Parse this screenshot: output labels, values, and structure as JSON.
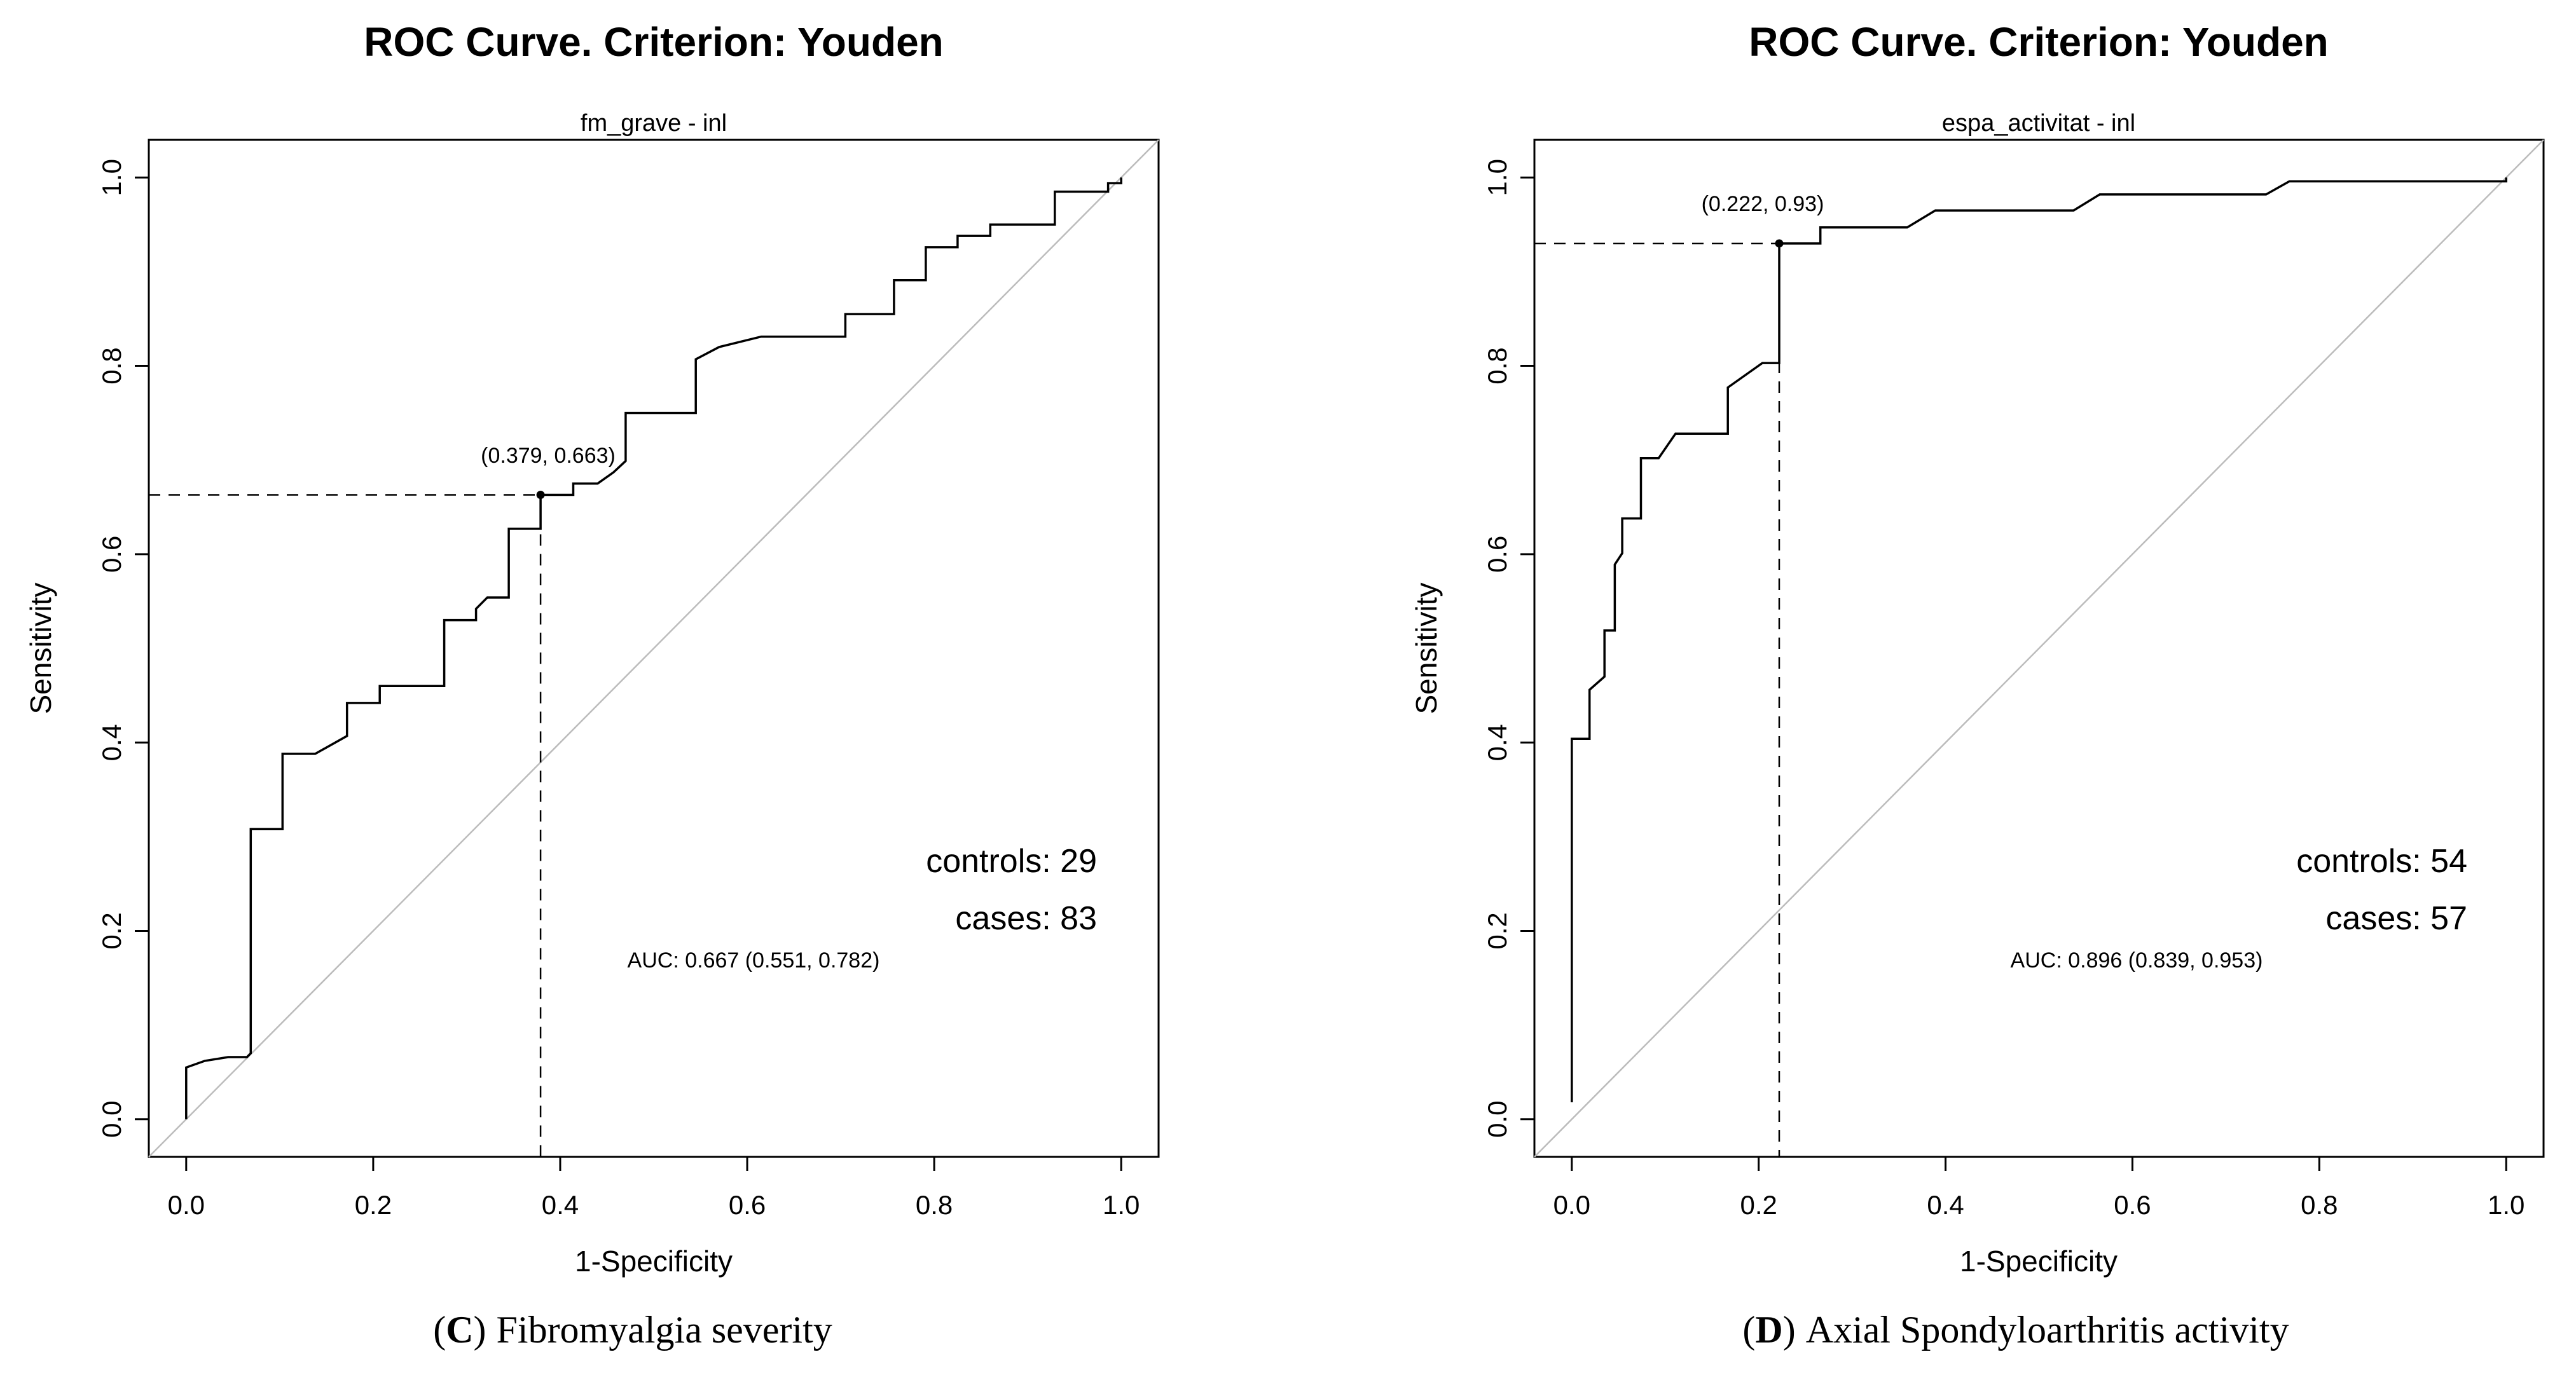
{
  "figure": {
    "background": "#ffffff"
  },
  "colors": {
    "curve": "#000000",
    "diagonal": "#bcbcbc",
    "dashed": "#000000",
    "text": "#000000",
    "box": "#000000"
  },
  "chart_data": [
    {
      "type": "line",
      "panel_letter": "C",
      "title": "ROC Curve. Criterion: Youden",
      "subtitle": "fm_grave - inl",
      "xlabel": "1-Specificity",
      "ylabel": "Sensitivity",
      "xlim": [
        0,
        1
      ],
      "ylim": [
        0,
        1
      ],
      "grid": false,
      "diagonal_reference": true,
      "legend_position": "none",
      "tick_values": [
        0,
        0.2,
        0.4,
        0.6,
        0.8,
        1.0
      ],
      "x_tick_labels": [
        "0.0",
        "0.2",
        "0.4",
        "0.6",
        "0.8",
        "1.0"
      ],
      "y_tick_labels": [
        "0.0",
        "0.2",
        "0.4",
        "0.6",
        "0.8",
        "1.0"
      ],
      "controls": 29,
      "cases": 83,
      "controls_label": "controls: 29",
      "cases_label": "cases: 83",
      "auc": 0.667,
      "auc_ci_low": 0.551,
      "auc_ci_high": 0.782,
      "auc_label": "AUC: 0.667 (0.551, 0.782)",
      "threshold_point": {
        "x": 0.379,
        "y": 0.663,
        "label": "(0.379, 0.663)"
      },
      "caption": {
        "open": "(",
        "letter": "C",
        "close": ")",
        "text": "Fibromyalgia severity"
      },
      "roc_curve": [
        [
          0,
          0
        ],
        [
          0,
          0.055
        ],
        [
          0.02,
          0.062
        ],
        [
          0.045,
          0.066
        ],
        [
          0.065,
          0.066
        ],
        [
          0.069,
          0.07
        ],
        [
          0.069,
          0.308
        ],
        [
          0.103,
          0.308
        ],
        [
          0.103,
          0.388
        ],
        [
          0.138,
          0.388
        ],
        [
          0.172,
          0.407
        ],
        [
          0.172,
          0.442
        ],
        [
          0.207,
          0.442
        ],
        [
          0.207,
          0.46
        ],
        [
          0.276,
          0.46
        ],
        [
          0.276,
          0.53
        ],
        [
          0.31,
          0.53
        ],
        [
          0.31,
          0.542
        ],
        [
          0.322,
          0.554
        ],
        [
          0.345,
          0.554
        ],
        [
          0.345,
          0.627
        ],
        [
          0.379,
          0.627
        ],
        [
          0.379,
          0.663
        ],
        [
          0.414,
          0.663
        ],
        [
          0.414,
          0.675
        ],
        [
          0.44,
          0.675
        ],
        [
          0.457,
          0.687
        ],
        [
          0.47,
          0.699
        ],
        [
          0.47,
          0.75
        ],
        [
          0.545,
          0.75
        ],
        [
          0.545,
          0.807
        ],
        [
          0.57,
          0.82
        ],
        [
          0.615,
          0.831
        ],
        [
          0.705,
          0.831
        ],
        [
          0.705,
          0.855
        ],
        [
          0.757,
          0.855
        ],
        [
          0.757,
          0.891
        ],
        [
          0.791,
          0.891
        ],
        [
          0.791,
          0.926
        ],
        [
          0.825,
          0.926
        ],
        [
          0.825,
          0.938
        ],
        [
          0.86,
          0.938
        ],
        [
          0.86,
          0.95
        ],
        [
          0.929,
          0.95
        ],
        [
          0.929,
          0.985
        ],
        [
          0.986,
          0.985
        ],
        [
          0.986,
          0.994
        ],
        [
          1,
          0.994
        ],
        [
          1,
          1
        ]
      ]
    },
    {
      "type": "line",
      "panel_letter": "D",
      "title": "ROC Curve. Criterion: Youden",
      "subtitle": "espa_activitat - inl",
      "xlabel": "1-Specificity",
      "ylabel": "Sensitivity",
      "xlim": [
        0,
        1
      ],
      "ylim": [
        0,
        1
      ],
      "grid": false,
      "diagonal_reference": true,
      "legend_position": "none",
      "tick_values": [
        0,
        0.2,
        0.4,
        0.6,
        0.8,
        1.0
      ],
      "x_tick_labels": [
        "0.0",
        "0.2",
        "0.4",
        "0.6",
        "0.8",
        "1.0"
      ],
      "y_tick_labels": [
        "0.0",
        "0.2",
        "0.4",
        "0.6",
        "0.8",
        "1.0"
      ],
      "controls": 54,
      "cases": 57,
      "controls_label": "controls: 54",
      "cases_label": "cases: 57",
      "auc": 0.896,
      "auc_ci_low": 0.839,
      "auc_ci_high": 0.953,
      "auc_label": "AUC: 0.896 (0.839, 0.953)",
      "threshold_point": {
        "x": 0.222,
        "y": 0.93,
        "label": "(0.222, 0.93)"
      },
      "caption": {
        "open": "(",
        "letter": "D",
        "close": ")",
        "text": "Axial Spondyloarthritis activity"
      },
      "roc_curve": [
        [
          0,
          0.018
        ],
        [
          0,
          0.404
        ],
        [
          0.019,
          0.404
        ],
        [
          0.019,
          0.456
        ],
        [
          0.035,
          0.47
        ],
        [
          0.035,
          0.519
        ],
        [
          0.046,
          0.519
        ],
        [
          0.046,
          0.589
        ],
        [
          0.054,
          0.601
        ],
        [
          0.054,
          0.638
        ],
        [
          0.074,
          0.638
        ],
        [
          0.074,
          0.702
        ],
        [
          0.093,
          0.702
        ],
        [
          0.111,
          0.728
        ],
        [
          0.167,
          0.728
        ],
        [
          0.167,
          0.777
        ],
        [
          0.204,
          0.803
        ],
        [
          0.222,
          0.803
        ],
        [
          0.222,
          0.93
        ],
        [
          0.266,
          0.93
        ],
        [
          0.266,
          0.947
        ],
        [
          0.359,
          0.947
        ],
        [
          0.389,
          0.965
        ],
        [
          0.537,
          0.965
        ],
        [
          0.565,
          0.982
        ],
        [
          0.743,
          0.982
        ],
        [
          0.768,
          0.996
        ],
        [
          1,
          0.996
        ],
        [
          1,
          1
        ]
      ]
    }
  ]
}
